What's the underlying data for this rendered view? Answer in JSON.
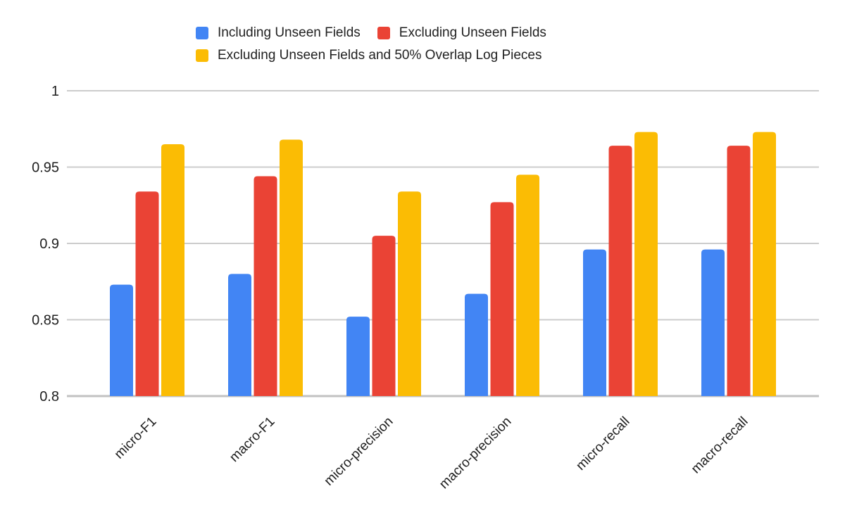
{
  "chart_data": {
    "type": "bar",
    "title": "",
    "xlabel": "",
    "ylabel": "",
    "categories": [
      "micro-F1",
      "macro-F1",
      "micro-precision",
      "macro-precision",
      "micro-recall",
      "macro-recall"
    ],
    "series": [
      {
        "name": "Including Unseen Fields",
        "color": "#4285F4",
        "values": [
          0.873,
          0.88,
          0.852,
          0.867,
          0.896,
          0.896
        ]
      },
      {
        "name": "Excluding Unseen Fields",
        "color": "#EA4335",
        "values": [
          0.934,
          0.944,
          0.905,
          0.927,
          0.964,
          0.964
        ]
      },
      {
        "name": "Excluding Unseen Fields and 50% Overlap Log Pieces",
        "color": "#FBBC04",
        "values": [
          0.965,
          0.968,
          0.934,
          0.945,
          0.973,
          0.973
        ]
      }
    ],
    "ylim": [
      0.8,
      1.0
    ],
    "y_ticks": [
      {
        "value": 1.0,
        "label": "1"
      },
      {
        "value": 0.95,
        "label": "0.95"
      },
      {
        "value": 0.9,
        "label": "0.9"
      },
      {
        "value": 0.85,
        "label": "0.85"
      },
      {
        "value": 0.8,
        "label": "0.8"
      }
    ],
    "grid": true,
    "legend_position": "top",
    "colors": {
      "gridline": "#cccccc",
      "axis_line": "#c2c2c2",
      "tick_text": "#1f1f1f",
      "legend_text": "#212121",
      "background": "#ffffff"
    }
  }
}
